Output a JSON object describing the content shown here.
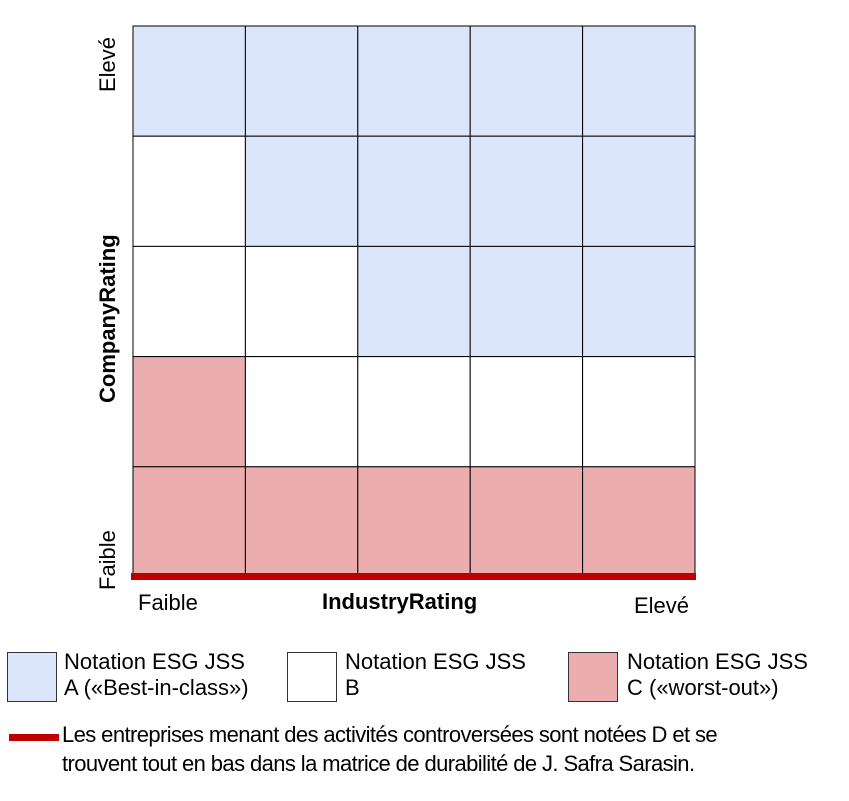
{
  "matrix": {
    "rows": 5,
    "cols": 5,
    "grid": [
      [
        "A",
        "A",
        "A",
        "A",
        "A"
      ],
      [
        "B",
        "A",
        "A",
        "A",
        "A"
      ],
      [
        "B",
        "B",
        "A",
        "A",
        "A"
      ],
      [
        "C",
        "B",
        "B",
        "B",
        "B"
      ],
      [
        "C",
        "C",
        "C",
        "C",
        "C"
      ]
    ],
    "x_axis": {
      "title": "IndustryRating",
      "low": "Faible",
      "high": "Elevé"
    },
    "y_axis": {
      "title": "CompanyRating",
      "low": "Faible",
      "high": "Elevé"
    }
  },
  "colors": {
    "A": "#dce6fb",
    "B": "#ffffff",
    "C": "#ebadad",
    "D": "#c00000"
  },
  "legend": {
    "items": [
      {
        "key": "A",
        "line1": "Notation ESG JSS",
        "line2": "A («Best-in-class»)"
      },
      {
        "key": "B",
        "line1": "Notation ESG JSS",
        "line2": "B"
      },
      {
        "key": "C",
        "line1": "Notation ESG JSS",
        "line2": "C («worst-out»)"
      }
    ],
    "note_line1": "Les entreprises menant des activités controversées sont notées D et se",
    "note_line2": "trouvent tout en bas dans la matrice de durabilité de J. Safra Sarasin."
  }
}
